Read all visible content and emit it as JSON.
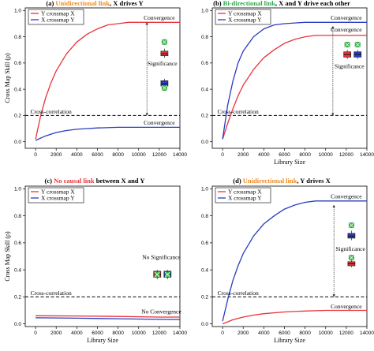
{
  "chart_data": [
    {
      "type": "line",
      "panel_label": "(a)",
      "title_colored": "Unidirectional link",
      "title_rest": ", X drives Y",
      "title_color": "#f08a24",
      "ylabel": "Cross Map Skill (ρ)",
      "xlabel": "",
      "xlim": [
        -1000,
        14000
      ],
      "ylim": [
        -0.05,
        1.02
      ],
      "x_ticks": [
        0,
        2000,
        4000,
        6000,
        8000,
        10000,
        12000,
        14000
      ],
      "y_ticks": [
        0.0,
        0.2,
        0.4,
        0.6,
        0.8,
        1.0
      ],
      "legend": {
        "position": "top-left",
        "entries": [
          "Y crossmap X",
          "X crossmap Y"
        ]
      },
      "series": [
        {
          "name": "Y crossmap X",
          "color": "#e8333a",
          "x": [
            0,
            500,
            1000,
            1500,
            2000,
            3000,
            4000,
            5000,
            6000,
            7000,
            8000,
            9000,
            10000,
            11000,
            12000,
            13000,
            14000
          ],
          "values": [
            0.02,
            0.2,
            0.34,
            0.45,
            0.54,
            0.67,
            0.76,
            0.82,
            0.86,
            0.89,
            0.9,
            0.91,
            0.91,
            0.91,
            0.91,
            0.91,
            0.91
          ]
        },
        {
          "name": "X crossmap Y",
          "color": "#2a3cbf",
          "x": [
            0,
            1000,
            2000,
            3000,
            4000,
            5000,
            6000,
            8000,
            10000,
            12000,
            14000
          ],
          "values": [
            0.01,
            0.045,
            0.07,
            0.085,
            0.095,
            0.1,
            0.105,
            0.11,
            0.11,
            0.11,
            0.11
          ]
        }
      ],
      "cross_correlation": 0.2,
      "annotations": [
        {
          "text": "Convergence",
          "x": 12000,
          "y": 0.93
        },
        {
          "text": "Significance",
          "x": 12300,
          "y": 0.58
        },
        {
          "text": "Cross-correlation",
          "x": 1500,
          "y": 0.215
        },
        {
          "text": "Convergence",
          "x": 12000,
          "y": 0.13
        }
      ],
      "boxes": [
        {
          "x": 12500,
          "low": 0.64,
          "q1": 0.655,
          "median": 0.67,
          "q3": 0.69,
          "high": 0.71,
          "fill": "#e8333a",
          "outlier": null
        },
        {
          "x": 12500,
          "low": 0.41,
          "q1": 0.425,
          "median": 0.44,
          "q3": 0.465,
          "high": 0.48,
          "fill": "#2a3cbf",
          "outlier": null
        }
      ],
      "markers": [
        {
          "x": 12500,
          "y": 0.76,
          "color": "#39c04a"
        },
        {
          "x": 12500,
          "y": 0.41,
          "color": "#39c04a"
        }
      ],
      "arrow_x": 10800,
      "arrow_from": 0.2,
      "arrow_to": 0.91
    },
    {
      "type": "line",
      "panel_label": "(b)",
      "title_colored": "Bi-directional link",
      "title_rest": ", X and Y drive each other",
      "title_color": "#2ea84a",
      "ylabel": "",
      "xlabel": "Library Size",
      "xlim": [
        -1000,
        14000
      ],
      "ylim": [
        -0.05,
        1.02
      ],
      "x_ticks": [
        0,
        2000,
        4000,
        6000,
        8000,
        10000,
        12000,
        14000
      ],
      "y_ticks": [
        0.0,
        0.2,
        0.4,
        0.6,
        0.8,
        1.0
      ],
      "legend": {
        "position": "top-left",
        "entries": [
          "Y crossmap X",
          "X crossmap Y"
        ]
      },
      "series": [
        {
          "name": "Y crossmap X",
          "color": "#e8333a",
          "x": [
            0,
            500,
            1000,
            1500,
            2000,
            3000,
            4000,
            5000,
            6000,
            7000,
            8000,
            9000,
            10000,
            11000,
            12000,
            13000,
            14000
          ],
          "values": [
            0.02,
            0.14,
            0.25,
            0.35,
            0.43,
            0.55,
            0.64,
            0.7,
            0.75,
            0.78,
            0.8,
            0.81,
            0.81,
            0.81,
            0.81,
            0.81,
            0.81
          ]
        },
        {
          "name": "X crossmap Y",
          "color": "#2a3cbf",
          "x": [
            0,
            500,
            1000,
            1500,
            2000,
            3000,
            4000,
            5000,
            6000,
            7000,
            8000,
            9000,
            10000,
            11000,
            12000,
            13000,
            14000
          ],
          "values": [
            0.02,
            0.28,
            0.46,
            0.6,
            0.69,
            0.8,
            0.86,
            0.89,
            0.9,
            0.905,
            0.91,
            0.91,
            0.91,
            0.91,
            0.91,
            0.91,
            0.91
          ]
        }
      ],
      "cross_correlation": 0.2,
      "annotations": [
        {
          "text": "Convergence",
          "x": 12000,
          "y": 0.93
        },
        {
          "text": "Convergence",
          "x": 12000,
          "y": 0.84
        },
        {
          "text": "Significance",
          "x": 12300,
          "y": 0.56
        },
        {
          "text": "Cross-correlation",
          "x": 1500,
          "y": 0.215
        }
      ],
      "boxes": [
        {
          "x": 12100,
          "low": 0.63,
          "q1": 0.645,
          "median": 0.665,
          "q3": 0.685,
          "high": 0.7,
          "fill": "#e8333a",
          "outlier": null
        },
        {
          "x": 13100,
          "low": 0.63,
          "q1": 0.645,
          "median": 0.665,
          "q3": 0.685,
          "high": 0.7,
          "fill": "#2a3cbf",
          "outlier": null
        }
      ],
      "markers": [
        {
          "x": 12100,
          "y": 0.74,
          "color": "#39c04a"
        },
        {
          "x": 13100,
          "y": 0.74,
          "color": "#39c04a"
        }
      ],
      "arrow_x": 10700,
      "arrow_from": 0.2,
      "arrow_to": 0.88
    },
    {
      "type": "line",
      "panel_label": "(c)",
      "title_colored": "No causal link",
      "title_rest": " between X and Y",
      "title_color": "#e8333a",
      "ylabel": "Cross Map Skill (ρ)",
      "xlabel": "Library Size",
      "xlim": [
        -1000,
        14000
      ],
      "ylim": [
        -0.02,
        1.02
      ],
      "x_ticks": [
        0,
        2000,
        4000,
        6000,
        8000,
        10000,
        12000,
        14000
      ],
      "y_ticks": [
        0.0,
        0.2,
        0.4,
        0.6,
        0.8,
        1.0
      ],
      "legend": {
        "position": "top-left",
        "entries": [
          "Y crossmap X",
          "X crossmap Y"
        ]
      },
      "series": [
        {
          "name": "Y crossmap X",
          "color": "#e8333a",
          "x": [
            0,
            4000,
            8000,
            12000,
            14000
          ],
          "values": [
            0.06,
            0.058,
            0.055,
            0.05,
            0.05
          ]
        },
        {
          "name": "X crossmap Y",
          "color": "#2a3cbf",
          "x": [
            0,
            4000,
            8000,
            12000,
            14000
          ],
          "values": [
            0.045,
            0.042,
            0.038,
            0.033,
            0.032
          ]
        }
      ],
      "cross_correlation": 0.2,
      "annotations": [
        {
          "text": "No Significance",
          "x": 12200,
          "y": 0.48
        },
        {
          "text": "Cross-correlation",
          "x": 1500,
          "y": 0.215
        },
        {
          "text": "No Convergence",
          "x": 12200,
          "y": 0.075
        }
      ],
      "boxes": [
        {
          "x": 11800,
          "low": 0.33,
          "q1": 0.345,
          "median": 0.365,
          "q3": 0.39,
          "high": 0.4,
          "fill": "#e8333a",
          "outlier": null
        },
        {
          "x": 12800,
          "low": 0.33,
          "q1": 0.345,
          "median": 0.365,
          "q3": 0.39,
          "high": 0.4,
          "fill": "#2a3cbf",
          "outlier": null
        }
      ],
      "markers": [
        {
          "x": 11800,
          "y": 0.365,
          "color": "#39c04a"
        },
        {
          "x": 12800,
          "y": 0.365,
          "color": "#39c04a"
        }
      ],
      "arrow_x": null,
      "arrow_from": null,
      "arrow_to": null
    },
    {
      "type": "line",
      "panel_label": "(d)",
      "title_colored": "Unidirectional link",
      "title_rest": ", Y drives X",
      "title_color": "#f08a24",
      "ylabel": "",
      "xlabel": "Library Size",
      "xlim": [
        -1000,
        14000
      ],
      "ylim": [
        -0.02,
        1.02
      ],
      "x_ticks": [
        0,
        2000,
        4000,
        6000,
        8000,
        10000,
        12000,
        14000
      ],
      "y_ticks": [
        0.0,
        0.2,
        0.4,
        0.6,
        0.8,
        1.0
      ],
      "legend": {
        "position": "top-left",
        "entries": [
          "Y crossmap X",
          "X crossmap Y"
        ]
      },
      "series": [
        {
          "name": "Y crossmap X",
          "color": "#e8333a",
          "x": [
            0,
            1000,
            2000,
            3000,
            4000,
            6000,
            8000,
            10000,
            12000,
            14000
          ],
          "values": [
            0.0,
            0.03,
            0.05,
            0.065,
            0.075,
            0.088,
            0.095,
            0.1,
            0.1,
            0.1
          ]
        },
        {
          "name": "X crossmap Y",
          "color": "#2a3cbf",
          "x": [
            0,
            500,
            1000,
            1500,
            2000,
            3000,
            4000,
            5000,
            6000,
            7000,
            8000,
            9000,
            10000,
            11000,
            12000,
            13000,
            14000
          ],
          "values": [
            0.02,
            0.18,
            0.32,
            0.43,
            0.52,
            0.65,
            0.74,
            0.8,
            0.85,
            0.88,
            0.9,
            0.91,
            0.91,
            0.91,
            0.91,
            0.91,
            0.91
          ]
        }
      ],
      "cross_correlation": 0.2,
      "annotations": [
        {
          "text": "Convergence",
          "x": 12000,
          "y": 0.93
        },
        {
          "text": "Significance",
          "x": 12400,
          "y": 0.54
        },
        {
          "text": "Cross-correlation",
          "x": 1500,
          "y": 0.215
        },
        {
          "text": "Convergence",
          "x": 12000,
          "y": 0.115
        }
      ],
      "boxes": [
        {
          "x": 12500,
          "low": 0.62,
          "q1": 0.635,
          "median": 0.65,
          "q3": 0.67,
          "high": 0.69,
          "fill": "#2a3cbf",
          "outlier": null
        },
        {
          "x": 12500,
          "low": 0.42,
          "q1": 0.43,
          "median": 0.445,
          "q3": 0.46,
          "high": 0.47,
          "fill": "#e8333a",
          "outlier": null
        }
      ],
      "markers": [
        {
          "x": 12500,
          "y": 0.73,
          "color": "#39c04a"
        },
        {
          "x": 12500,
          "y": 0.49,
          "color": "#39c04a"
        }
      ],
      "arrow_x": 10800,
      "arrow_from": 0.2,
      "arrow_to": 0.88
    }
  ]
}
